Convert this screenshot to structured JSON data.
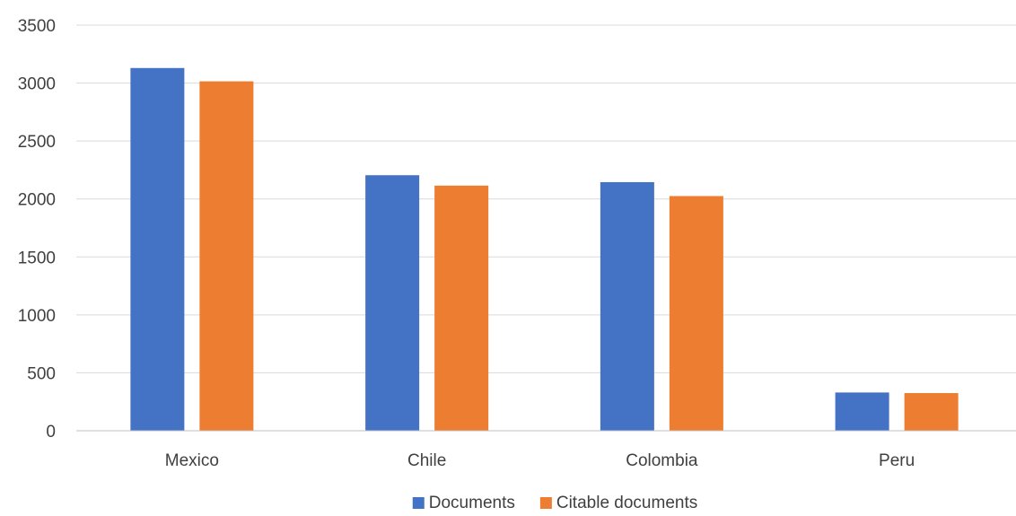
{
  "chart_data": {
    "type": "bar",
    "title": "",
    "xlabel": "",
    "ylabel": "",
    "categories": [
      "Mexico",
      "Chile",
      "Colombia",
      "Peru"
    ],
    "series": [
      {
        "name": "Documents",
        "color": "#4472C4",
        "values": [
          3130,
          2205,
          2145,
          330
        ]
      },
      {
        "name": "Citable documents",
        "color": "#ED7D31",
        "values": [
          3015,
          2115,
          2025,
          325
        ]
      }
    ],
    "ylim": [
      0,
      3500
    ],
    "yticks": [
      0,
      500,
      1000,
      1500,
      2000,
      2500,
      3000,
      3500
    ],
    "grid": true,
    "legend": "bottom-center"
  }
}
